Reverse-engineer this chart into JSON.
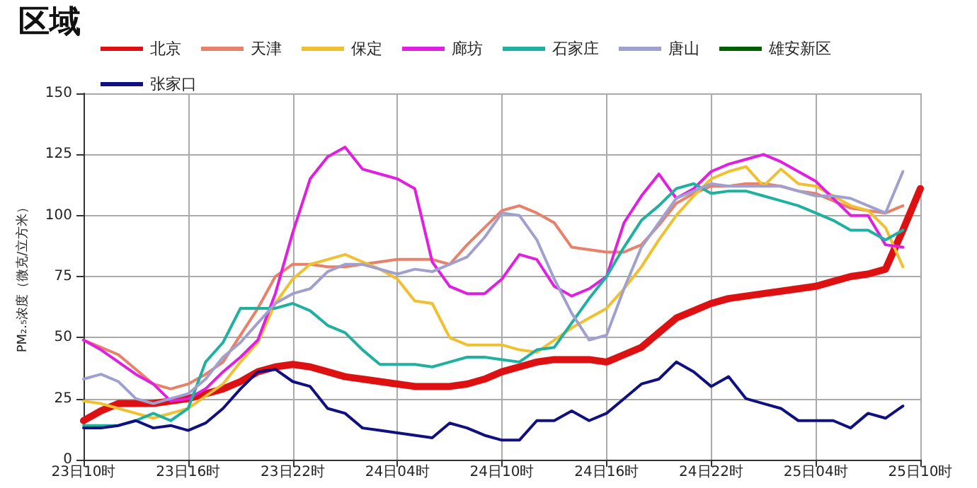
{
  "chart_data": {
    "type": "line",
    "title": "区域",
    "ylabel": "PM₂.₅浓度（微克/立方米）",
    "categories": [
      "23日10时",
      null,
      null,
      null,
      null,
      null,
      "23日16时",
      null,
      null,
      null,
      null,
      null,
      "23日22时",
      null,
      null,
      null,
      null,
      null,
      "24日04时",
      null,
      null,
      null,
      null,
      null,
      "24日10时",
      null,
      null,
      null,
      null,
      null,
      "24日16时",
      null,
      null,
      null,
      null,
      null,
      "24日22时",
      null,
      null,
      null,
      null,
      null,
      "25日04时",
      null,
      null,
      null,
      null,
      null,
      "25日10时"
    ],
    "ylim": [
      0,
      150
    ],
    "yticks": [
      0,
      25,
      50,
      75,
      100,
      125,
      150
    ],
    "grid": true,
    "legend": "top",
    "marker": "none",
    "line_style": "solid",
    "series": [
      {
        "name": "北京",
        "color": "#dd1111",
        "values": [
          16,
          20,
          23,
          23,
          23,
          24,
          25,
          27,
          29,
          32,
          36,
          38,
          39,
          38,
          36,
          34,
          33,
          32,
          31,
          30,
          30,
          30,
          31,
          33,
          36,
          38,
          40,
          41,
          41,
          41,
          40,
          43,
          46,
          52,
          58,
          61,
          64,
          66,
          67,
          68,
          69,
          70,
          71,
          73,
          75,
          76,
          78,
          94,
          111
        ]
      },
      {
        "name": "天津",
        "color": "#e8806a",
        "values": [
          49,
          46,
          43,
          37,
          31,
          29,
          31,
          35,
          40,
          51,
          62,
          75,
          80,
          80,
          79,
          79,
          80,
          81,
          82,
          82,
          82,
          80,
          88,
          95,
          102,
          104,
          101,
          97,
          87,
          86,
          85,
          85,
          88,
          96,
          105,
          109,
          112,
          112,
          113,
          113,
          112,
          110,
          109,
          106,
          103,
          102,
          101,
          104,
          null
        ]
      },
      {
        "name": "保定",
        "color": "#f0c030",
        "values": [
          24,
          23,
          21,
          19,
          17,
          19,
          21,
          26,
          31,
          40,
          48,
          64,
          74,
          80,
          82,
          84,
          81,
          78,
          74,
          65,
          64,
          50,
          47,
          47,
          47,
          45,
          44,
          49,
          54,
          58,
          62,
          70,
          79,
          90,
          100,
          108,
          115,
          118,
          120,
          112,
          119,
          113,
          112,
          108,
          104,
          102,
          95,
          79,
          null
        ]
      },
      {
        "name": "廊坊",
        "color": "#e020e0",
        "values": [
          49,
          45,
          40,
          35,
          31,
          24,
          25,
          29,
          36,
          42,
          49,
          68,
          93,
          115,
          124,
          128,
          119,
          117,
          115,
          111,
          81,
          71,
          68,
          68,
          74,
          84,
          82,
          71,
          67,
          70,
          75,
          97,
          108,
          117,
          107,
          111,
          118,
          121,
          123,
          125,
          122,
          118,
          114,
          107,
          100,
          100,
          88,
          87,
          null
        ]
      },
      {
        "name": "石家庄",
        "color": "#20b0a0",
        "values": [
          14,
          14,
          14,
          16,
          19,
          16,
          21,
          40,
          48,
          62,
          62,
          62,
          64,
          61,
          55,
          52,
          45,
          39,
          39,
          39,
          38,
          40,
          42,
          42,
          41,
          40,
          45,
          46,
          56,
          66,
          75,
          87,
          98,
          104,
          111,
          113,
          109,
          110,
          110,
          108,
          106,
          104,
          101,
          98,
          94,
          94,
          90,
          94,
          null
        ]
      },
      {
        "name": "唐山",
        "color": "#a0a0d0",
        "values": [
          33,
          35,
          32,
          25,
          23,
          25,
          27,
          33,
          42,
          48,
          56,
          64,
          68,
          70,
          77,
          80,
          80,
          78,
          76,
          78,
          77,
          80,
          83,
          91,
          101,
          100,
          90,
          74,
          60,
          49,
          51,
          70,
          87,
          97,
          107,
          110,
          113,
          112,
          112,
          112,
          112,
          110,
          108,
          108,
          107,
          104,
          101,
          118,
          null
        ]
      },
      {
        "name": "雄安新区",
        "color": "#006000",
        "values": [
          null,
          null,
          null,
          null,
          null,
          null,
          null,
          null,
          null,
          null,
          null,
          null,
          null,
          null,
          null,
          null,
          null,
          null,
          null,
          null,
          null,
          null,
          null,
          null,
          null,
          null,
          null,
          null,
          null,
          null,
          null,
          null,
          null,
          null,
          null,
          null,
          null,
          null,
          null,
          null,
          null,
          null,
          null,
          null,
          null,
          null,
          null,
          null,
          null
        ]
      },
      {
        "name": "张家口",
        "color": "#101080",
        "values": [
          13,
          13,
          14,
          16,
          13,
          14,
          12,
          15,
          21,
          29,
          36,
          37,
          32,
          30,
          21,
          19,
          13,
          12,
          11,
          10,
          9,
          15,
          13,
          10,
          8,
          8,
          16,
          16,
          20,
          16,
          19,
          25,
          31,
          33,
          40,
          36,
          30,
          34,
          25,
          23,
          21,
          16,
          16,
          16,
          13,
          19,
          17,
          22,
          null
        ]
      }
    ]
  }
}
